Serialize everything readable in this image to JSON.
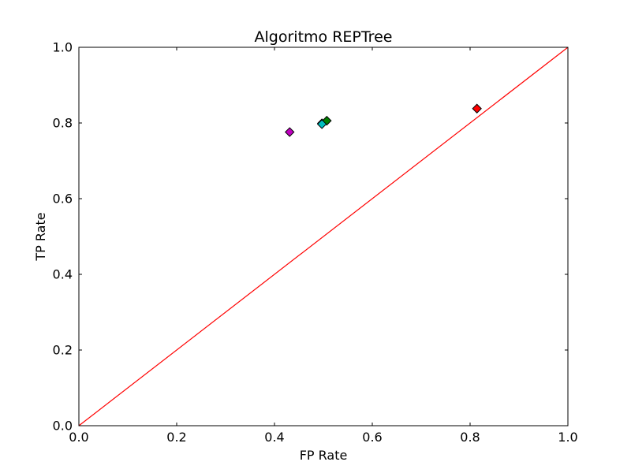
{
  "chart_data": {
    "type": "scatter",
    "title": "Algoritmo REPTree",
    "xlabel": "FP Rate",
    "ylabel": "TP Rate",
    "xlim": [
      0.0,
      1.0
    ],
    "ylim": [
      0.0,
      1.0
    ],
    "x_ticks": [
      "0.0",
      "0.2",
      "0.4",
      "0.6",
      "0.8",
      "1.0"
    ],
    "y_ticks": [
      "0.0",
      "0.2",
      "0.4",
      "0.6",
      "0.8",
      "1.0"
    ],
    "grid": false,
    "reference_line": {
      "x": [
        0.0,
        1.0
      ],
      "y": [
        0.0,
        1.0
      ],
      "color": "#ff0000"
    },
    "points": [
      {
        "x": 0.431,
        "y": 0.776,
        "color": "#bf00bf"
      },
      {
        "x": 0.497,
        "y": 0.799,
        "color": "#0000ff"
      },
      {
        "x": 0.507,
        "y": 0.806,
        "color": "#008000"
      },
      {
        "x": 0.497,
        "y": 0.797,
        "color": "#00bfbf"
      },
      {
        "x": 0.814,
        "y": 0.838,
        "color": "#ff0000"
      }
    ]
  }
}
